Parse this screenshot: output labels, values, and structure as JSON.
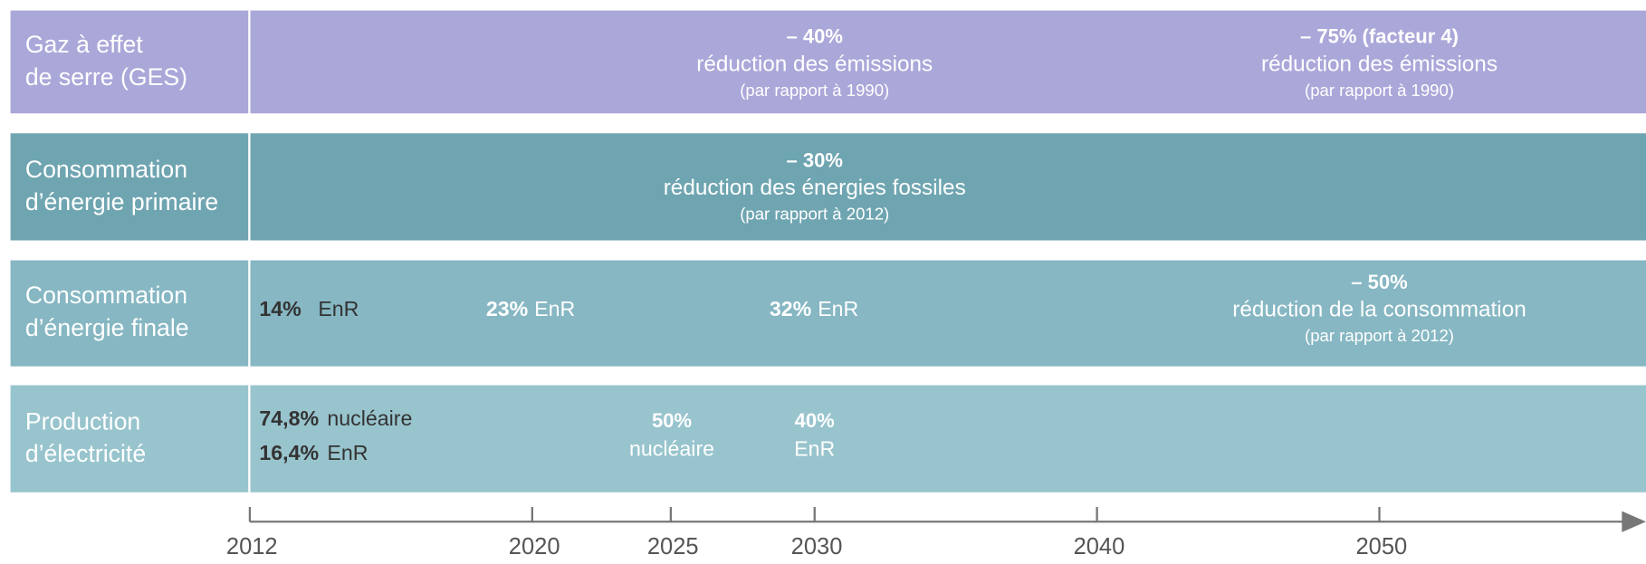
{
  "rows": [
    {
      "label": [
        "Gaz à effet",
        "de serre (GES)"
      ],
      "items": [
        {
          "value": "– 40%",
          "text": "réduction des émissions",
          "note": "(par rapport à 1990)"
        },
        {
          "value": "– 75% (facteur 4)",
          "text": "réduction des émissions",
          "note": "(par rapport à 1990)"
        }
      ]
    },
    {
      "label": [
        "Consommation",
        "d’énergie primaire"
      ],
      "items": [
        {
          "value": "– 30%",
          "text": "réduction des énergies fossiles",
          "note": "(par rapport à 2012)"
        }
      ]
    },
    {
      "label": [
        "Consommation",
        "d’énergie finale"
      ],
      "items": [
        {
          "value": "14%",
          "text": "EnR"
        },
        {
          "value": "23%",
          "text": "EnR"
        },
        {
          "value": "32%",
          "text": "EnR"
        },
        {
          "value": "– 50%",
          "text": "réduction de la consommation",
          "note": "(par rapport à 2012)"
        }
      ]
    },
    {
      "label": [
        "Production",
        "d’électricité"
      ],
      "items": [
        {
          "value": "74,8%",
          "text": "nucléaire"
        },
        {
          "value": "16,4%",
          "text": "EnR"
        },
        {
          "value": "50%",
          "text": "nucléaire"
        },
        {
          "value": "40%",
          "text": "EnR"
        }
      ]
    }
  ],
  "timeline": {
    "ticks": [
      2012,
      2020,
      2025,
      2030,
      2040,
      2050
    ]
  }
}
